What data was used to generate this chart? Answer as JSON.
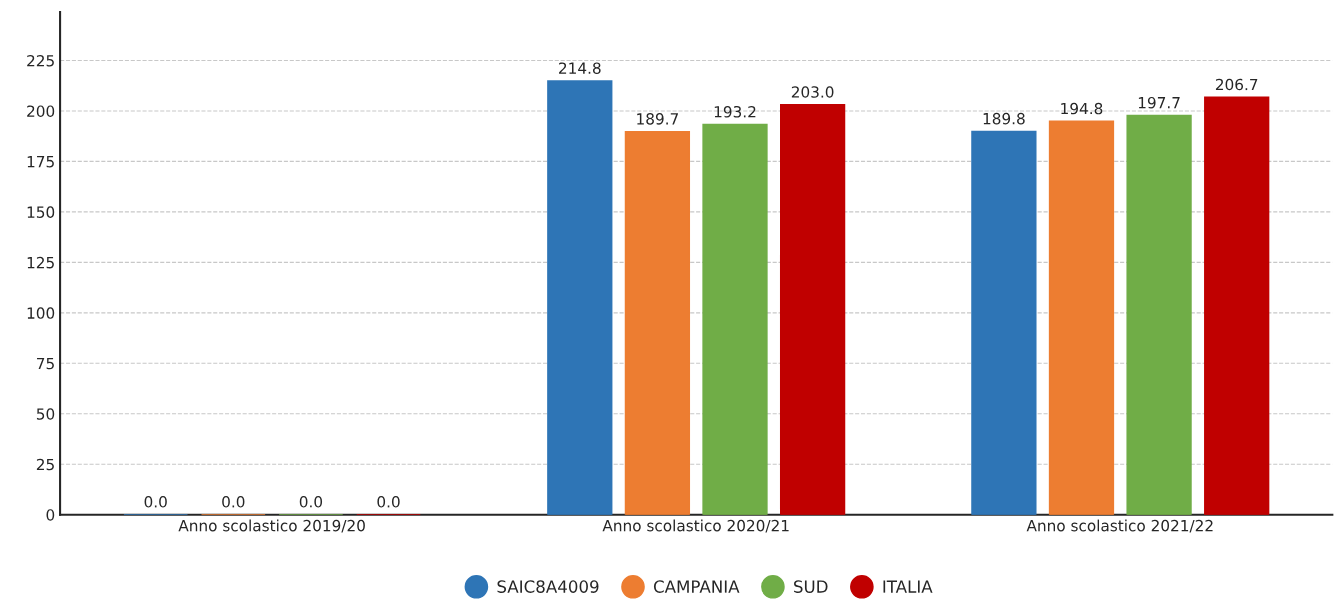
{
  "chart_data": {
    "type": "bar",
    "categories": [
      "Anno scolastico 2019/20",
      "Anno scolastico 2020/21",
      "Anno scolastico 2021/22"
    ],
    "series": [
      {
        "name": "SAIC8A4009",
        "color": "#2e75b6",
        "values": [
          0.0,
          214.8,
          189.8
        ],
        "value_labels": [
          "0.0",
          "214.8",
          "189.8"
        ]
      },
      {
        "name": "CAMPANIA",
        "color": "#ed7d31",
        "values": [
          0.0,
          189.7,
          194.8
        ],
        "value_labels": [
          "0.0",
          "189.7",
          "194.8"
        ]
      },
      {
        "name": "SUD",
        "color": "#70ad47",
        "values": [
          0.0,
          193.2,
          197.7
        ],
        "value_labels": [
          "0.0",
          "193.2",
          "197.7"
        ]
      },
      {
        "name": "ITALIA",
        "color": "#c00000",
        "values": [
          0.0,
          203.0,
          206.7
        ],
        "value_labels": [
          "0.0",
          "203.0",
          "206.7"
        ]
      }
    ],
    "ylim": [
      0,
      249
    ],
    "yticks": [
      0,
      25,
      50,
      75,
      100,
      125,
      150,
      175,
      200,
      225
    ],
    "grid": "y",
    "legend": "bottom"
  }
}
